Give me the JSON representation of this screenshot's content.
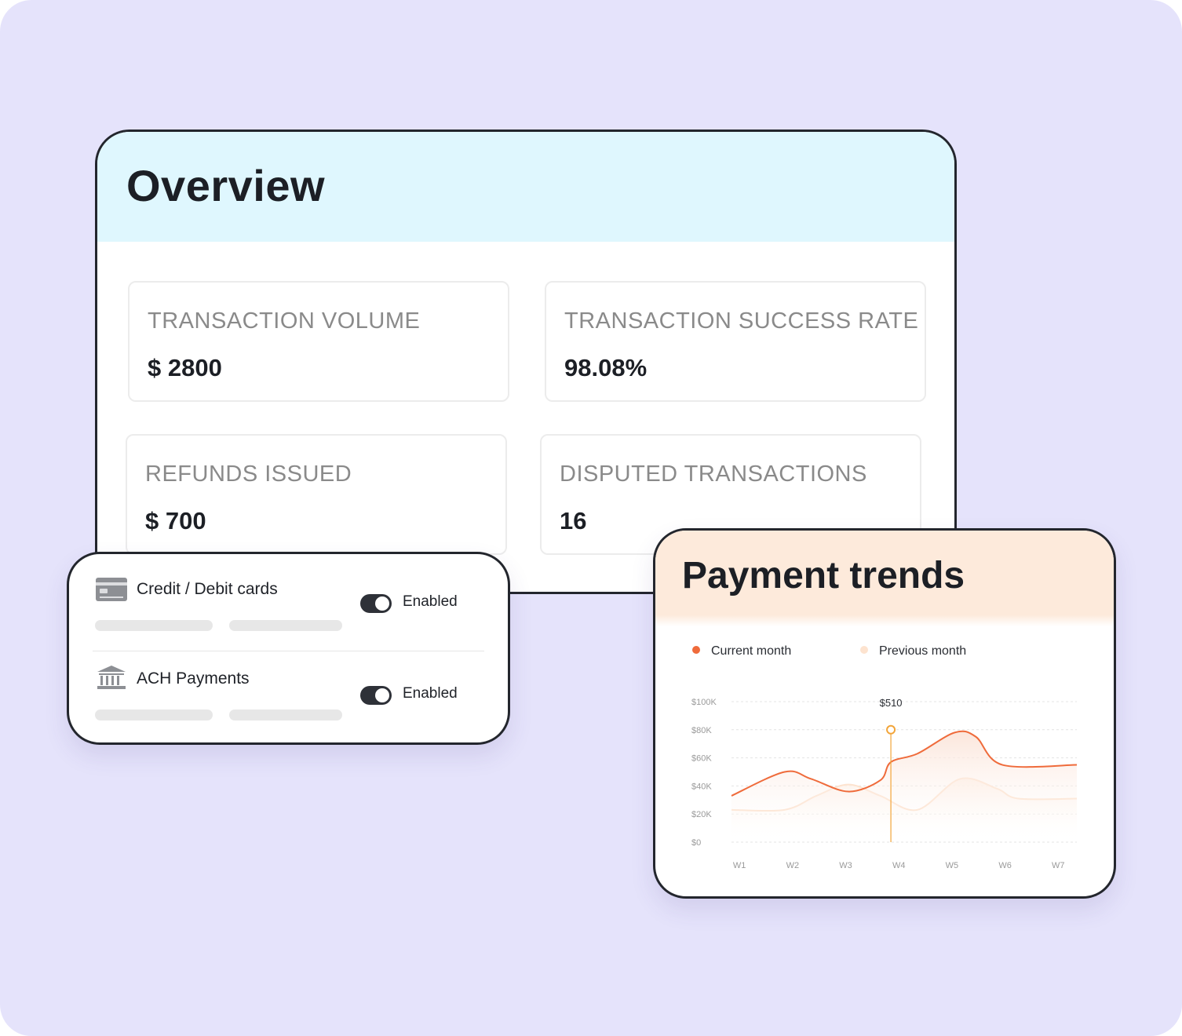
{
  "overview": {
    "title": "Overview",
    "stats": [
      {
        "label": "TRANSACTION VOLUME",
        "value": "$ 2800"
      },
      {
        "label": "TRANSACTION SUCCESS RATE",
        "value": "98.08%"
      },
      {
        "label": "REFUNDS ISSUED",
        "value": "$ 700"
      },
      {
        "label": "DISPUTED TRANSACTIONS",
        "value": "16"
      }
    ]
  },
  "payment_methods": {
    "items": [
      {
        "name": "Credit / Debit cards",
        "icon": "credit-card-icon",
        "status": "Enabled",
        "enabled": true
      },
      {
        "name": "ACH Payments",
        "icon": "bank-icon",
        "status": "Enabled",
        "enabled": true
      }
    ]
  },
  "trends": {
    "title": "Payment trends",
    "colors": {
      "current": "#ef6b3b",
      "previous": "#fde3cf",
      "marker": "#f2a53a"
    },
    "legend": [
      {
        "label": "Current month"
      },
      {
        "label": "Previous month"
      }
    ]
  },
  "chart_data": {
    "type": "line",
    "title": "",
    "xlabel": "",
    "ylabel": "",
    "x": [
      "W1",
      "W2",
      "W3",
      "W4",
      "W5",
      "W6",
      "W7"
    ],
    "ylim": [
      0,
      100000
    ],
    "y_ticks": [
      "$0",
      "$20K",
      "$40K",
      "$60K",
      "$80K",
      "$100K"
    ],
    "y_tick_values": [
      0,
      20000,
      40000,
      60000,
      80000,
      100000
    ],
    "series": [
      {
        "name": "Current month",
        "points": [
          {
            "x": 0.0,
            "y": 33000
          },
          {
            "x": 1.0,
            "y": 50000
          },
          {
            "x": 1.5,
            "y": 45000
          },
          {
            "x": 2.2,
            "y": 36000
          },
          {
            "x": 2.8,
            "y": 44000
          },
          {
            "x": 3.0,
            "y": 57000
          },
          {
            "x": 3.5,
            "y": 63000
          },
          {
            "x": 4.2,
            "y": 78000
          },
          {
            "x": 4.6,
            "y": 75000
          },
          {
            "x": 5.1,
            "y": 55000
          },
          {
            "x": 6.5,
            "y": 55000
          }
        ]
      },
      {
        "name": "Previous month",
        "points": [
          {
            "x": 0.0,
            "y": 23000
          },
          {
            "x": 1.0,
            "y": 23000
          },
          {
            "x": 1.6,
            "y": 33000
          },
          {
            "x": 2.2,
            "y": 41000
          },
          {
            "x": 2.8,
            "y": 33000
          },
          {
            "x": 3.5,
            "y": 23000
          },
          {
            "x": 4.3,
            "y": 45000
          },
          {
            "x": 5.0,
            "y": 38000
          },
          {
            "x": 5.4,
            "y": 31000
          },
          {
            "x": 6.5,
            "y": 31000
          }
        ]
      }
    ],
    "annotation": {
      "label": "$510",
      "x": 3.0,
      "y": 80000
    }
  }
}
